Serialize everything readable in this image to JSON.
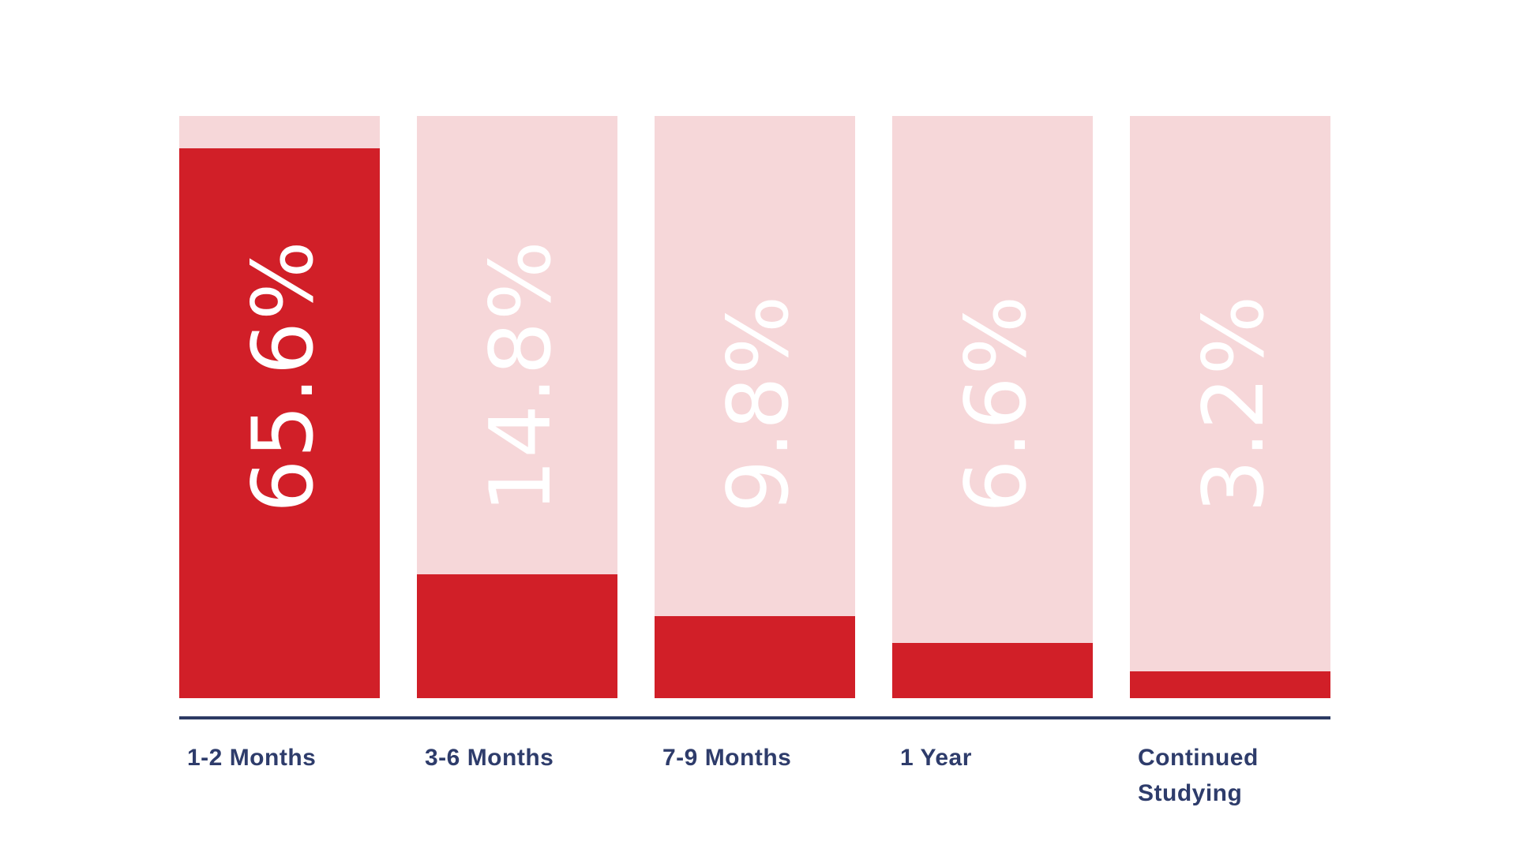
{
  "chart_data": {
    "type": "bar",
    "orientation": "vertical",
    "title": "",
    "xlabel": "",
    "ylabel": "",
    "grid": false,
    "legend": "none",
    "categories": [
      "1-2 Months",
      "3-6 Months",
      "7-9 Months",
      "1 Year",
      "Continued Studying"
    ],
    "values": [
      65.6,
      14.8,
      9.8,
      6.6,
      3.2
    ],
    "value_labels": [
      "65.6%",
      "14.8%",
      "9.8%",
      "6.6%",
      "3.2%"
    ],
    "fill_percents": [
      94.4,
      21.3,
      14.1,
      9.5,
      4.6
    ],
    "ylim": [
      0,
      69.5
    ],
    "colors": {
      "bar_fill": "#d11f28",
      "bar_track": "#f6d7d9",
      "value_text": "#ffffff",
      "category_text": "#2e3c6b",
      "axis_line": "#2c3a63",
      "background": "#ffffff"
    }
  }
}
